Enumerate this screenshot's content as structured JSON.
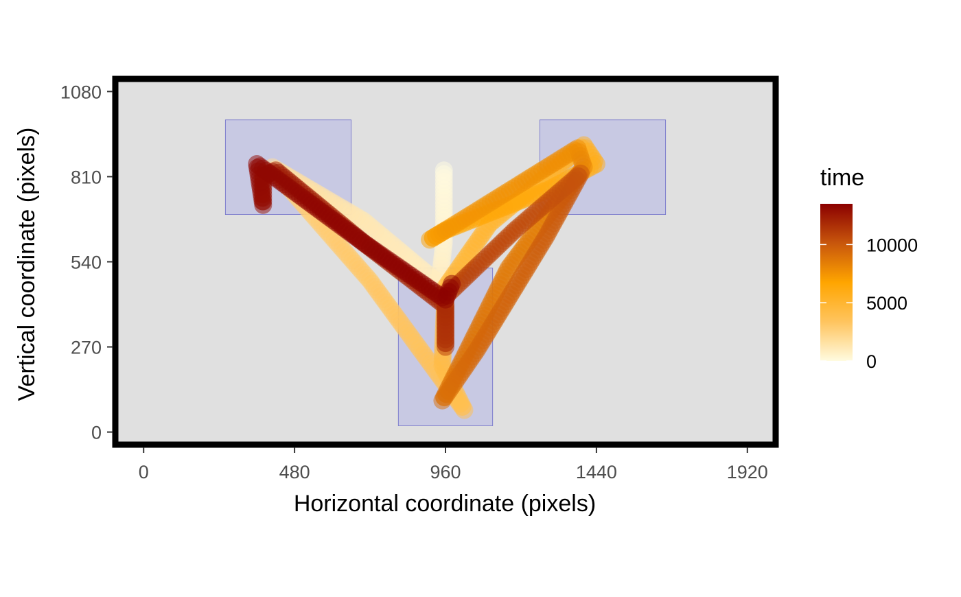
{
  "chart_data": {
    "type": "scatter",
    "xlabel": "Horizontal coordinate (pixels)",
    "ylabel": "Vertical coordinate (pixels)",
    "xlim": [
      -90,
      2010
    ],
    "ylim": [
      -40,
      1120
    ],
    "x_ticks": [
      0,
      480,
      960,
      1440,
      1920
    ],
    "y_ticks": [
      0,
      270,
      540,
      810,
      1080
    ],
    "grid": false,
    "panel_background": "#e0e0e0",
    "panel_border": "#000000",
    "aoi_fill": "#c8c9e3",
    "aoi_stroke": "#6b6bc8",
    "areas_of_interest": [
      {
        "name": "aoi-left",
        "x0": 260,
        "x1": 660,
        "y0": 690,
        "y1": 990
      },
      {
        "name": "aoi-bottom",
        "x0": 810,
        "x1": 1110,
        "y0": 20,
        "y1": 520
      },
      {
        "name": "aoi-right",
        "x0": 1260,
        "x1": 1660,
        "y0": 690,
        "y1": 990
      }
    ],
    "legend": {
      "title": "time",
      "position": "right",
      "min": 0,
      "max": 13500,
      "breaks": [
        0,
        5000,
        10000
      ],
      "labels": [
        "0",
        "5000",
        "10000"
      ],
      "colors": [
        "#fffbe0",
        "#ffc45e",
        "#ffa500",
        "#c8560c",
        "#8b0000"
      ]
    },
    "path_vertices": [
      {
        "t": 0,
        "x": 955,
        "y": 830
      },
      {
        "t": 400,
        "x": 955,
        "y": 600
      },
      {
        "t": 800,
        "x": 940,
        "y": 470
      },
      {
        "t": 1200,
        "x": 700,
        "y": 670
      },
      {
        "t": 1800,
        "x": 410,
        "y": 840
      },
      {
        "t": 2600,
        "x": 440,
        "y": 800
      },
      {
        "t": 3200,
        "x": 720,
        "y": 480
      },
      {
        "t": 3800,
        "x": 1020,
        "y": 70
      },
      {
        "t": 4200,
        "x": 950,
        "y": 210
      },
      {
        "t": 4600,
        "x": 960,
        "y": 460
      },
      {
        "t": 5000,
        "x": 1100,
        "y": 660
      },
      {
        "t": 5400,
        "x": 1400,
        "y": 910
      },
      {
        "t": 5800,
        "x": 1440,
        "y": 850
      },
      {
        "t": 6200,
        "x": 1290,
        "y": 770
      },
      {
        "t": 6600,
        "x": 960,
        "y": 640
      },
      {
        "t": 7000,
        "x": 910,
        "y": 610
      },
      {
        "t": 7400,
        "x": 960,
        "y": 640
      },
      {
        "t": 7800,
        "x": 1380,
        "y": 900
      },
      {
        "t": 8200,
        "x": 1400,
        "y": 840
      },
      {
        "t": 8600,
        "x": 1160,
        "y": 520
      },
      {
        "t": 9000,
        "x": 950,
        "y": 100
      },
      {
        "t": 9400,
        "x": 1060,
        "y": 260
      },
      {
        "t": 9800,
        "x": 1280,
        "y": 620
      },
      {
        "t": 10200,
        "x": 1390,
        "y": 820
      },
      {
        "t": 10600,
        "x": 1180,
        "y": 640
      },
      {
        "t": 11000,
        "x": 960,
        "y": 430
      },
      {
        "t": 11400,
        "x": 960,
        "y": 270
      },
      {
        "t": 11800,
        "x": 960,
        "y": 400
      },
      {
        "t": 12200,
        "x": 700,
        "y": 600
      },
      {
        "t": 12600,
        "x": 420,
        "y": 830
      },
      {
        "t": 12800,
        "x": 380,
        "y": 810
      },
      {
        "t": 13000,
        "x": 380,
        "y": 720
      },
      {
        "t": 13200,
        "x": 360,
        "y": 850
      },
      {
        "t": 13300,
        "x": 700,
        "y": 600
      },
      {
        "t": 13400,
        "x": 960,
        "y": 420
      },
      {
        "t": 13500,
        "x": 980,
        "y": 470
      }
    ]
  }
}
